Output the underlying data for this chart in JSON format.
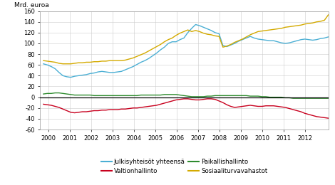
{
  "ylabel": "Mrd. euroa",
  "ylim": [
    -60,
    160
  ],
  "yticks": [
    -60,
    -40,
    -20,
    0,
    20,
    40,
    60,
    80,
    100,
    120,
    140,
    160
  ],
  "xlim": [
    1999.6,
    2013.1
  ],
  "xticks": [
    2000,
    2001,
    2002,
    2003,
    2004,
    2005,
    2006,
    2007,
    2008,
    2009,
    2010,
    2011,
    2012
  ],
  "colors": {
    "julkis": "#4bafd4",
    "valtio": "#c8001e",
    "paikallis": "#2e8b2e",
    "sosiaali": "#d4aa00"
  },
  "julkis": [
    62,
    60,
    57,
    53,
    46,
    40,
    38,
    37,
    39,
    40,
    41,
    42,
    44,
    45,
    47,
    48,
    47,
    46,
    46,
    47,
    48,
    51,
    54,
    57,
    61,
    65,
    68,
    72,
    77,
    82,
    88,
    93,
    100,
    103,
    103,
    107,
    110,
    120,
    128,
    135,
    133,
    130,
    127,
    124,
    120,
    118,
    96,
    94,
    97,
    100,
    104,
    107,
    110,
    113,
    110,
    108,
    107,
    106,
    105,
    105,
    103,
    101,
    100,
    101,
    103,
    105,
    107,
    108,
    107,
    106,
    107,
    109,
    110,
    112
  ],
  "valtio": [
    -13,
    -14,
    -15,
    -17,
    -19,
    -22,
    -25,
    -28,
    -29,
    -28,
    -27,
    -27,
    -26,
    -25,
    -25,
    -24,
    -24,
    -23,
    -23,
    -23,
    -22,
    -22,
    -21,
    -20,
    -20,
    -19,
    -18,
    -17,
    -16,
    -15,
    -13,
    -11,
    -9,
    -7,
    -5,
    -4,
    -3,
    -3,
    -4,
    -5,
    -5,
    -4,
    -3,
    -3,
    -4,
    -7,
    -10,
    -14,
    -17,
    -19,
    -18,
    -17,
    -16,
    -15,
    -16,
    -17,
    -17,
    -16,
    -16,
    -16,
    -17,
    -18,
    -19,
    -21,
    -23,
    -25,
    -27,
    -30,
    -32,
    -34,
    -36,
    -37,
    -38,
    -39
  ],
  "paikallis": [
    6,
    7,
    7,
    8,
    8,
    7,
    6,
    5,
    4,
    4,
    4,
    4,
    4,
    3,
    3,
    3,
    3,
    3,
    3,
    3,
    3,
    3,
    3,
    3,
    3,
    4,
    4,
    4,
    4,
    4,
    4,
    5,
    5,
    5,
    5,
    4,
    3,
    2,
    1,
    1,
    1,
    1,
    2,
    2,
    3,
    3,
    3,
    3,
    3,
    3,
    3,
    3,
    3,
    2,
    2,
    2,
    1,
    1,
    0,
    0,
    0,
    0,
    -1,
    -1,
    -2,
    -2,
    -2,
    -2,
    -2,
    -2,
    -2,
    -2,
    -2,
    -2
  ],
  "sosiaali": [
    68,
    67,
    66,
    65,
    63,
    62,
    62,
    62,
    63,
    64,
    64,
    65,
    65,
    66,
    66,
    67,
    67,
    68,
    68,
    68,
    68,
    69,
    71,
    73,
    76,
    79,
    82,
    86,
    90,
    94,
    98,
    103,
    107,
    110,
    115,
    119,
    122,
    125,
    122,
    124,
    122,
    119,
    117,
    116,
    114,
    113,
    93,
    95,
    98,
    102,
    105,
    108,
    112,
    116,
    119,
    122,
    123,
    124,
    125,
    126,
    127,
    128,
    130,
    131,
    132,
    133,
    134,
    136,
    137,
    138,
    140,
    141,
    143,
    153
  ],
  "n_points": 74,
  "t_start": 1999.75,
  "t_end": 2013.1,
  "legend_labels": [
    "Julkisyhteisöt yhteensä",
    "Valtionhallinto",
    "Paikallishallinto",
    "Sosiaaliturvavahastot"
  ]
}
